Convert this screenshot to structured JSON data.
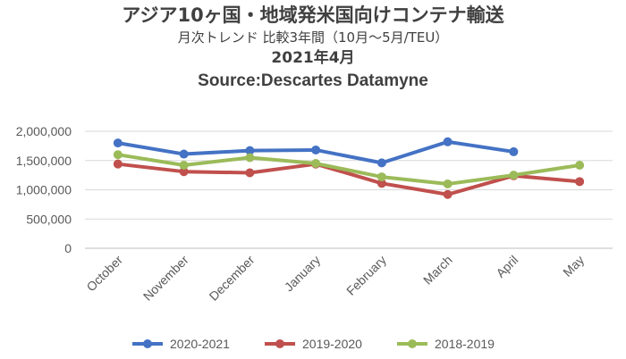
{
  "chart_data": {
    "type": "line",
    "title": "アジア10ヶ国・地域発米国向けコンテナ輸送",
    "subtitle": "月次トレンド 比較3年間（10月～5月/TEU）",
    "period": "2021年4月",
    "source": "Source:Descartes Datamyne",
    "categories": [
      "October",
      "November",
      "December",
      "January",
      "February",
      "March",
      "April",
      "May"
    ],
    "y_ticks": [
      "2,000,000",
      "1,500,000",
      "1,000,000",
      "500,000",
      "0"
    ],
    "ylim": [
      0,
      2000000
    ],
    "grid": true,
    "legend_position": "bottom",
    "series": [
      {
        "name": "2020-2021",
        "color": "#4472C4",
        "values": [
          1800000,
          1610000,
          1670000,
          1680000,
          1460000,
          1820000,
          1650000,
          null
        ]
      },
      {
        "name": "2019-2020",
        "color": "#C0504D",
        "values": [
          1440000,
          1310000,
          1290000,
          1440000,
          1110000,
          920000,
          1240000,
          1140000
        ]
      },
      {
        "name": "2018-2019",
        "color": "#9BBB59",
        "values": [
          1600000,
          1420000,
          1550000,
          1450000,
          1220000,
          1100000,
          1250000,
          1420000
        ]
      }
    ]
  }
}
